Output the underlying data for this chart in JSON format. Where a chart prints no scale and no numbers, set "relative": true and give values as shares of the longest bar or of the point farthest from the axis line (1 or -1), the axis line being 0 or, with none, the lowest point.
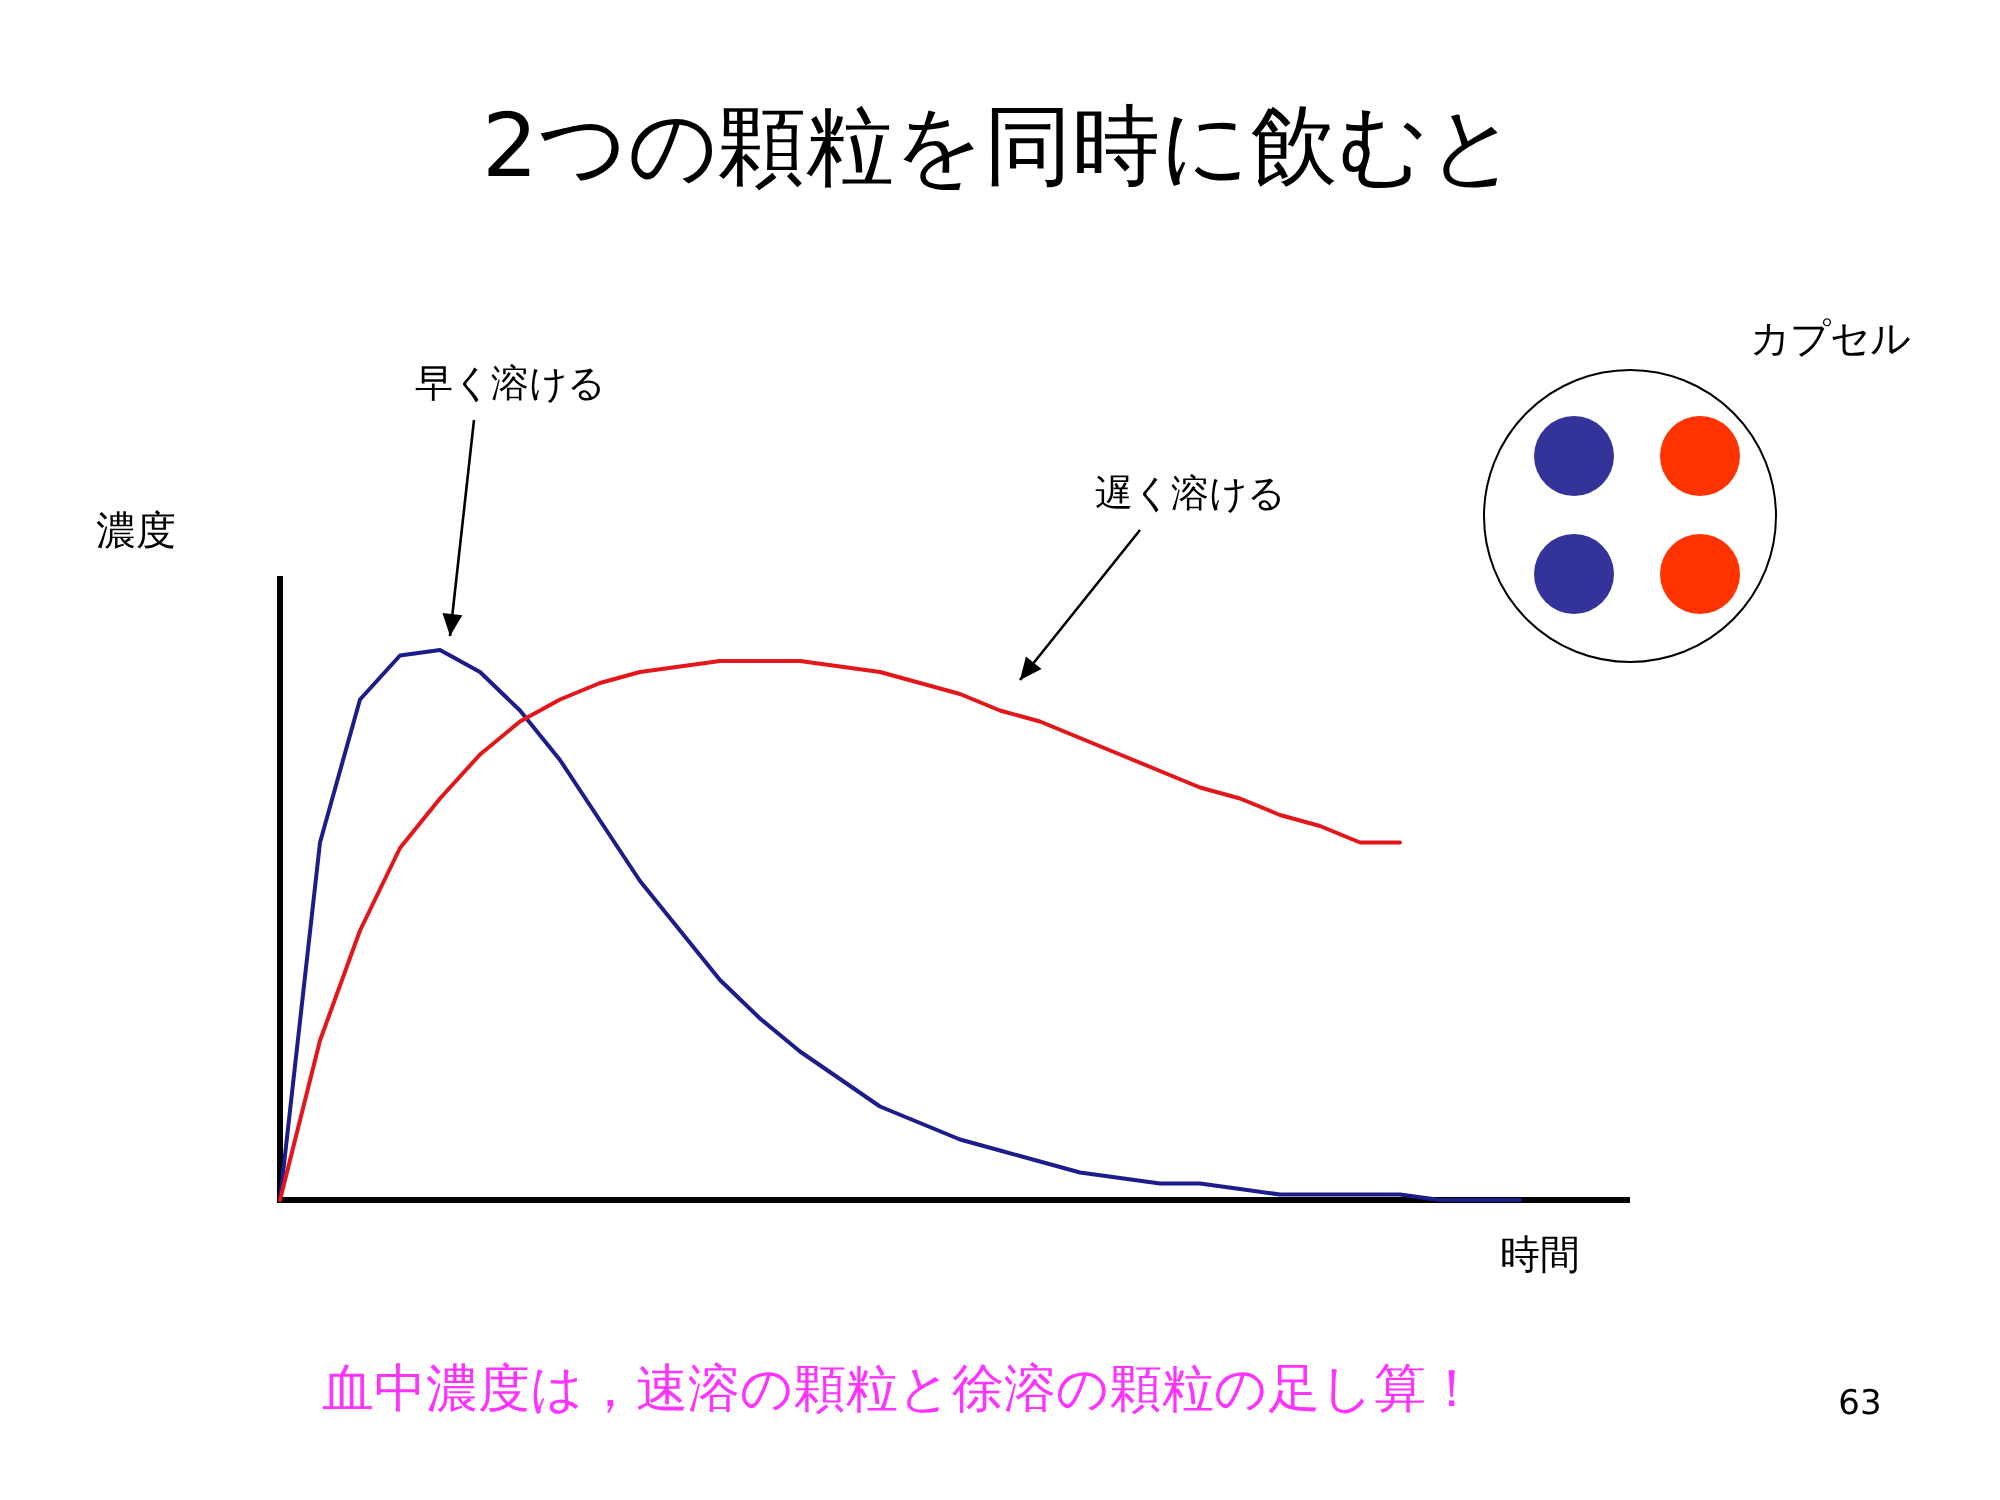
{
  "chart_data": {
    "type": "line",
    "title": "2つの顆粒を同時に飲むと",
    "xlabel": "時間",
    "ylabel": "濃度",
    "relative": true,
    "categories": [
      null,
      null,
      null,
      null,
      null,
      null,
      null,
      null,
      null,
      null,
      null,
      null,
      null,
      null,
      null,
      null,
      null,
      null,
      null,
      null,
      null,
      null,
      null,
      null,
      null,
      null,
      null,
      null,
      null,
      null,
      null,
      null
    ],
    "series": [
      {
        "name": "早く溶ける",
        "color": "#1c1c8a",
        "values": [
          0,
          0.65,
          0.91,
          0.99,
          1,
          0.96,
          0.89,
          0.8,
          0.69,
          0.58,
          0.49,
          0.4,
          0.33,
          0.27,
          0.22,
          0.17,
          0.14,
          0.11,
          0.09,
          0.07,
          0.05,
          0.04,
          0.03,
          0.03,
          0.02,
          0.01,
          0.01,
          0.01,
          0.01,
          0,
          0,
          0
        ]
      },
      {
        "name": "遅く溶ける",
        "color": "#e3161b",
        "values": [
          0,
          0.29,
          0.49,
          0.64,
          0.73,
          0.81,
          0.87,
          0.91,
          0.94,
          0.96,
          0.97,
          0.98,
          0.98,
          0.98,
          0.97,
          0.96,
          0.94,
          0.92,
          0.89,
          0.87,
          0.84,
          0.81,
          0.78,
          0.75,
          0.73,
          0.7,
          0.68,
          0.65,
          0.65,
          null,
          null,
          null
        ]
      }
    ],
    "annotations": [
      "カプセル",
      "血中濃度は，速溶の顆粒と徐溶の顆粒の足し算！",
      "63"
    ]
  }
}
